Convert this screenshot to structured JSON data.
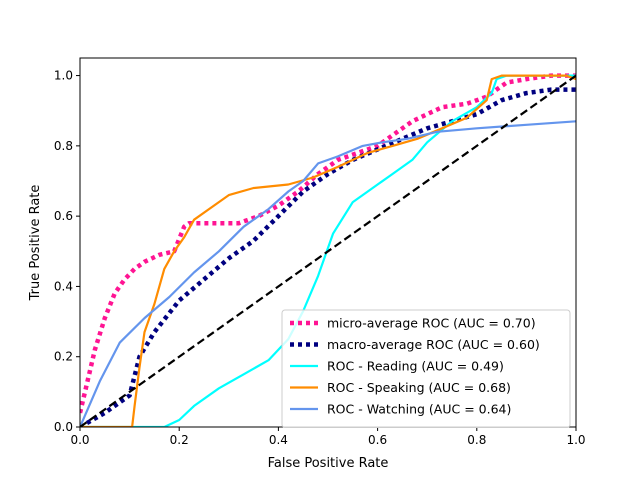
{
  "chart_data": {
    "type": "line",
    "title": "",
    "xlabel": "False Positive Rate",
    "ylabel": "True Positive Rate",
    "xlim": [
      0.0,
      1.0
    ],
    "ylim": [
      0.0,
      1.05
    ],
    "xticks": [
      "0.0",
      "0.2",
      "0.4",
      "0.6",
      "0.8",
      "1.0"
    ],
    "yticks": [
      "0.0",
      "0.2",
      "0.4",
      "0.6",
      "0.8",
      "1.0"
    ],
    "grid": false,
    "legend_position": "lower-right",
    "series": [
      {
        "name": "micro-average ROC (AUC = 0.70)",
        "color": "#ff1493",
        "style": "dotted",
        "points": [
          [
            0.0,
            0.04
          ],
          [
            0.01,
            0.1
          ],
          [
            0.03,
            0.22
          ],
          [
            0.05,
            0.31
          ],
          [
            0.07,
            0.38
          ],
          [
            0.09,
            0.42
          ],
          [
            0.11,
            0.45
          ],
          [
            0.13,
            0.47
          ],
          [
            0.16,
            0.49
          ],
          [
            0.19,
            0.5
          ],
          [
            0.21,
            0.57
          ],
          [
            0.22,
            0.58
          ],
          [
            0.32,
            0.58
          ],
          [
            0.36,
            0.6
          ],
          [
            0.4,
            0.63
          ],
          [
            0.44,
            0.67
          ],
          [
            0.48,
            0.72
          ],
          [
            0.52,
            0.76
          ],
          [
            0.56,
            0.78
          ],
          [
            0.6,
            0.8
          ],
          [
            0.63,
            0.83
          ],
          [
            0.67,
            0.87
          ],
          [
            0.7,
            0.89
          ],
          [
            0.73,
            0.91
          ],
          [
            0.78,
            0.92
          ],
          [
            0.82,
            0.94
          ],
          [
            0.84,
            0.96
          ],
          [
            0.86,
            0.98
          ],
          [
            0.9,
            0.99
          ],
          [
            0.95,
            1.0
          ],
          [
            1.0,
            1.0
          ]
        ]
      },
      {
        "name": "macro-average ROC (AUC = 0.60)",
        "color": "#000080",
        "style": "dotted",
        "points": [
          [
            0.0,
            0.0
          ],
          [
            0.05,
            0.04
          ],
          [
            0.1,
            0.09
          ],
          [
            0.12,
            0.2
          ],
          [
            0.15,
            0.27
          ],
          [
            0.2,
            0.36
          ],
          [
            0.25,
            0.42
          ],
          [
            0.3,
            0.48
          ],
          [
            0.35,
            0.53
          ],
          [
            0.4,
            0.6
          ],
          [
            0.45,
            0.67
          ],
          [
            0.5,
            0.72
          ],
          [
            0.55,
            0.76
          ],
          [
            0.6,
            0.79
          ],
          [
            0.65,
            0.82
          ],
          [
            0.7,
            0.85
          ],
          [
            0.75,
            0.87
          ],
          [
            0.8,
            0.89
          ],
          [
            0.85,
            0.93
          ],
          [
            0.9,
            0.95
          ],
          [
            0.95,
            0.96
          ],
          [
            1.0,
            0.96
          ]
        ]
      },
      {
        "name": "ROC - Reading (AUC = 0.49)",
        "color": "#00ffff",
        "style": "solid",
        "points": [
          [
            0.0,
            0.0
          ],
          [
            0.17,
            0.0
          ],
          [
            0.2,
            0.02
          ],
          [
            0.23,
            0.06
          ],
          [
            0.28,
            0.11
          ],
          [
            0.33,
            0.15
          ],
          [
            0.38,
            0.19
          ],
          [
            0.42,
            0.25
          ],
          [
            0.45,
            0.33
          ],
          [
            0.48,
            0.43
          ],
          [
            0.51,
            0.55
          ],
          [
            0.55,
            0.64
          ],
          [
            0.6,
            0.69
          ],
          [
            0.63,
            0.72
          ],
          [
            0.67,
            0.76
          ],
          [
            0.7,
            0.81
          ],
          [
            0.75,
            0.87
          ],
          [
            0.8,
            0.91
          ],
          [
            0.83,
            0.95
          ],
          [
            0.84,
            0.99
          ],
          [
            0.86,
            1.0
          ],
          [
            1.0,
            1.0
          ]
        ]
      },
      {
        "name": "ROC - Speaking (AUC = 0.68)",
        "color": "#ff8c00",
        "style": "solid",
        "points": [
          [
            0.0,
            0.0
          ],
          [
            0.105,
            0.0
          ],
          [
            0.11,
            0.06
          ],
          [
            0.12,
            0.17
          ],
          [
            0.13,
            0.27
          ],
          [
            0.15,
            0.35
          ],
          [
            0.17,
            0.45
          ],
          [
            0.19,
            0.5
          ],
          [
            0.21,
            0.54
          ],
          [
            0.23,
            0.59
          ],
          [
            0.26,
            0.62
          ],
          [
            0.3,
            0.66
          ],
          [
            0.35,
            0.68
          ],
          [
            0.42,
            0.69
          ],
          [
            0.47,
            0.71
          ],
          [
            0.52,
            0.74
          ],
          [
            0.58,
            0.78
          ],
          [
            0.63,
            0.8
          ],
          [
            0.68,
            0.82
          ],
          [
            0.73,
            0.85
          ],
          [
            0.78,
            0.88
          ],
          [
            0.82,
            0.93
          ],
          [
            0.83,
            0.99
          ],
          [
            0.85,
            1.0
          ],
          [
            0.98,
            1.0
          ],
          [
            1.0,
            0.99
          ]
        ]
      },
      {
        "name": "ROC - Watching (AUC = 0.64)",
        "color": "#6495ed",
        "style": "solid",
        "points": [
          [
            0.0,
            0.0
          ],
          [
            0.04,
            0.13
          ],
          [
            0.08,
            0.24
          ],
          [
            0.13,
            0.31
          ],
          [
            0.18,
            0.37
          ],
          [
            0.23,
            0.44
          ],
          [
            0.28,
            0.5
          ],
          [
            0.33,
            0.57
          ],
          [
            0.38,
            0.62
          ],
          [
            0.42,
            0.67
          ],
          [
            0.45,
            0.7
          ],
          [
            0.48,
            0.75
          ],
          [
            0.52,
            0.77
          ],
          [
            0.57,
            0.8
          ],
          [
            0.61,
            0.81
          ],
          [
            0.66,
            0.82
          ],
          [
            0.72,
            0.84
          ],
          [
            0.8,
            0.85
          ],
          [
            0.9,
            0.86
          ],
          [
            1.0,
            0.87
          ]
        ]
      },
      {
        "name": "",
        "color": "#000000",
        "style": "dashed",
        "points": [
          [
            0.0,
            0.0
          ],
          [
            1.0,
            1.0
          ]
        ]
      }
    ]
  }
}
